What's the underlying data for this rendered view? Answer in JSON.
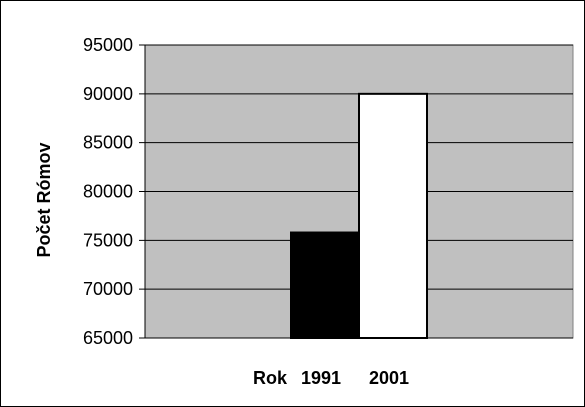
{
  "chart_data": {
    "type": "bar",
    "categories": [
      "1991",
      "2001"
    ],
    "values": [
      75800,
      90000
    ],
    "title": "",
    "xlabel": "Rok",
    "ylabel": "Počet Rómov",
    "ylim": [
      65000,
      95000
    ],
    "yticks": [
      "65000",
      "70000",
      "75000",
      "80000",
      "85000",
      "90000",
      "95000"
    ],
    "grid": true,
    "legend": "none",
    "colors": {
      "plot_background": "#c0c0c0",
      "bars": [
        "#000000",
        "#ffffff"
      ],
      "bar_stroke": "#000000",
      "gridline": "#000000",
      "frame": "#000000"
    }
  }
}
